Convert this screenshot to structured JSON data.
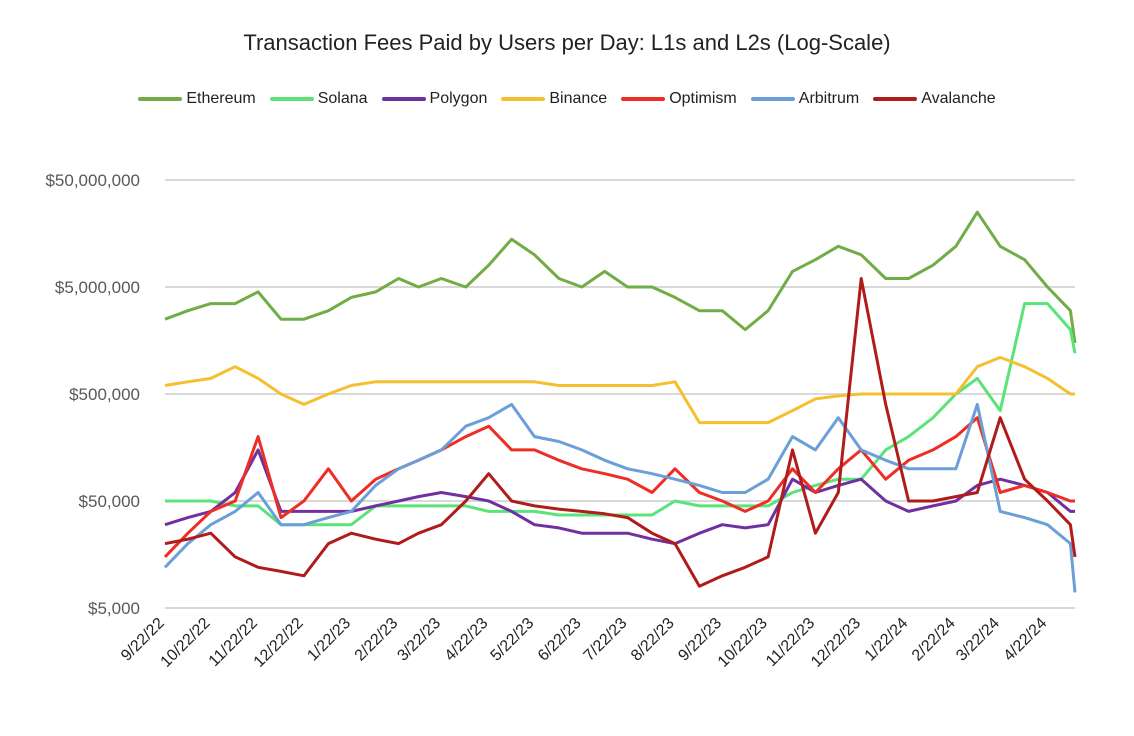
{
  "chart_data": {
    "type": "line",
    "title": "Transaction Fees Paid by Users per Day: L1s and L2s (Log-Scale)",
    "xlabel": "",
    "ylabel": "",
    "y_scale": "log",
    "ylim": [
      5000,
      50000000
    ],
    "grid": true,
    "legend_position": "top",
    "y_ticks": [
      5000,
      50000,
      500000,
      5000000,
      50000000
    ],
    "y_tick_labels": [
      "$5,000",
      "$50,000",
      "$500,000",
      "$5,000,000",
      "$50,000,000"
    ],
    "x_tick_labels": [
      "9/22/22",
      "10/22/22",
      "11/22/22",
      "12/22/22",
      "1/22/23",
      "2/22/23",
      "3/22/23",
      "4/22/23",
      "5/22/23",
      "6/22/23",
      "7/22/23",
      "8/22/23",
      "9/22/23",
      "10/22/23",
      "11/22/23",
      "12/22/23",
      "1/22/24",
      "2/22/24",
      "3/22/24",
      "4/22/24"
    ],
    "x": [
      "9/22/22",
      "10/7/22",
      "10/22/22",
      "11/7/22",
      "11/22/22",
      "12/7/22",
      "12/22/22",
      "1/7/23",
      "1/22/23",
      "2/7/23",
      "2/22/23",
      "3/7/23",
      "3/22/23",
      "4/7/23",
      "4/22/23",
      "5/7/23",
      "5/22/23",
      "6/7/23",
      "6/22/23",
      "7/7/23",
      "7/22/23",
      "8/7/23",
      "8/22/23",
      "9/7/23",
      "9/22/23",
      "10/7/23",
      "10/22/23",
      "11/7/23",
      "11/22/23",
      "12/7/23",
      "12/22/23",
      "1/7/24",
      "1/22/24",
      "2/7/24",
      "2/22/24",
      "3/7/24",
      "3/22/24",
      "4/7/24",
      "4/22/24",
      "5/7/24",
      "5/10/24"
    ],
    "series": [
      {
        "name": "Ethereum",
        "color": "#70ad47",
        "values": [
          2500000,
          3000000,
          3500000,
          3500000,
          4500000,
          2500000,
          2500000,
          3000000,
          4000000,
          4500000,
          6000000,
          5000000,
          6000000,
          5000000,
          8000000,
          14000000,
          10000000,
          6000000,
          5000000,
          7000000,
          5000000,
          5000000,
          4000000,
          3000000,
          3000000,
          2000000,
          3000000,
          7000000,
          9000000,
          12000000,
          10000000,
          6000000,
          6000000,
          8000000,
          12000000,
          25000000,
          12000000,
          9000000,
          5000000,
          3000000,
          1500000
        ]
      },
      {
        "name": "Solana",
        "color": "#5be37a",
        "values": [
          50000,
          50000,
          50000,
          45000,
          45000,
          30000,
          30000,
          30000,
          30000,
          45000,
          45000,
          45000,
          45000,
          45000,
          40000,
          40000,
          40000,
          37000,
          37000,
          37000,
          37000,
          37000,
          50000,
          45000,
          45000,
          45000,
          45000,
          60000,
          70000,
          80000,
          80000,
          150000,
          200000,
          300000,
          500000,
          700000,
          350000,
          3500000,
          3500000,
          2000000,
          1200000
        ]
      },
      {
        "name": "Polygon",
        "color": "#7030a0",
        "values": [
          30000,
          35000,
          40000,
          60000,
          150000,
          40000,
          40000,
          40000,
          40000,
          45000,
          50000,
          55000,
          60000,
          55000,
          50000,
          40000,
          30000,
          28000,
          25000,
          25000,
          25000,
          22000,
          20000,
          25000,
          30000,
          28000,
          30000,
          80000,
          60000,
          70000,
          80000,
          50000,
          40000,
          45000,
          50000,
          70000,
          80000,
          70000,
          60000,
          40000,
          40000
        ]
      },
      {
        "name": "Binance",
        "color": "#f4c030",
        "values": [
          600000,
          650000,
          700000,
          900000,
          700000,
          500000,
          400000,
          500000,
          600000,
          650000,
          650000,
          650000,
          650000,
          650000,
          650000,
          650000,
          650000,
          600000,
          600000,
          600000,
          600000,
          600000,
          650000,
          270000,
          270000,
          270000,
          270000,
          350000,
          450000,
          480000,
          500000,
          500000,
          500000,
          500000,
          500000,
          900000,
          1100000,
          900000,
          700000,
          500000,
          500000
        ]
      },
      {
        "name": "Optimism",
        "color": "#ee2d24",
        "values": [
          15000,
          25000,
          40000,
          50000,
          200000,
          35000,
          50000,
          100000,
          50000,
          80000,
          100000,
          120000,
          150000,
          200000,
          250000,
          150000,
          150000,
          120000,
          100000,
          90000,
          80000,
          60000,
          100000,
          60000,
          50000,
          40000,
          50000,
          100000,
          60000,
          100000,
          150000,
          80000,
          120000,
          150000,
          200000,
          300000,
          60000,
          70000,
          60000,
          50000,
          50000
        ]
      },
      {
        "name": "Arbitrum",
        "color": "#6a9fd8",
        "values": [
          12000,
          20000,
          30000,
          40000,
          60000,
          30000,
          30000,
          35000,
          40000,
          70000,
          100000,
          120000,
          150000,
          250000,
          300000,
          400000,
          200000,
          180000,
          150000,
          120000,
          100000,
          90000,
          80000,
          70000,
          60000,
          60000,
          80000,
          200000,
          150000,
          300000,
          150000,
          120000,
          100000,
          100000,
          100000,
          400000,
          40000,
          35000,
          30000,
          20000,
          7000
        ]
      },
      {
        "name": "Avalanche",
        "color": "#b01c1c",
        "values": [
          20000,
          22000,
          25000,
          15000,
          12000,
          11000,
          10000,
          20000,
          25000,
          22000,
          20000,
          25000,
          30000,
          50000,
          90000,
          50000,
          45000,
          42000,
          40000,
          38000,
          35000,
          25000,
          20000,
          8000,
          10000,
          12000,
          15000,
          150000,
          25000,
          60000,
          6000000,
          400000,
          50000,
          50000,
          55000,
          60000,
          300000,
          80000,
          50000,
          30000,
          15000
        ]
      }
    ]
  }
}
